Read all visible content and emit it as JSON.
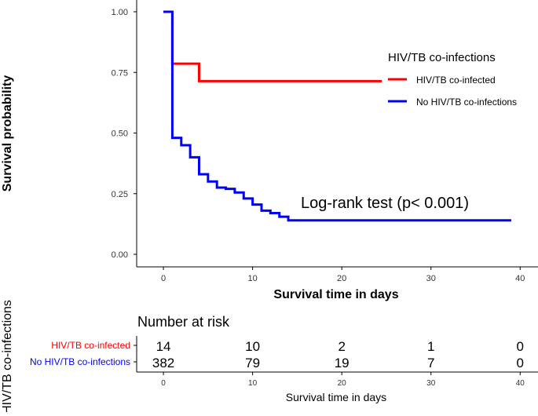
{
  "chart_data": {
    "type": "line",
    "subtype": "kaplan-meier",
    "ylabel": "Survival probability",
    "xlabel": "Survival time in days",
    "xlim": [
      -3,
      42
    ],
    "ylim": [
      0,
      1
    ],
    "x_ticks": [
      0,
      10,
      20,
      30,
      40
    ],
    "y_ticks": [
      0.0,
      0.25,
      0.5,
      0.75,
      1.0
    ],
    "y_tick_labels": [
      "0.00",
      "0.25",
      "0.50",
      "0.75",
      "1.00"
    ],
    "legend": {
      "title": "HIV/TB co-infections",
      "position": "right"
    },
    "annotation": "Log-rank test (p< 0.001)",
    "series": [
      {
        "name": "HIV/TB co-infected",
        "color": "#ff0000",
        "x": [
          0,
          1,
          4,
          24.5
        ],
        "y": [
          1.0,
          0.786,
          0.714,
          0.714
        ]
      },
      {
        "name": "No HIV/TB co-infections",
        "color": "#0000ff",
        "x": [
          0,
          1,
          2,
          3,
          4,
          5,
          6,
          7,
          8,
          9,
          10,
          11,
          12,
          13,
          14,
          39
        ],
        "y": [
          1.0,
          0.48,
          0.45,
          0.4,
          0.33,
          0.3,
          0.275,
          0.27,
          0.255,
          0.23,
          0.205,
          0.18,
          0.17,
          0.155,
          0.14,
          0.14
        ]
      }
    ],
    "risk_table": {
      "title": "Number at risk",
      "ylabel": "HIV/TB co-infections",
      "xlabel": "Survival time in days",
      "times": [
        0,
        10,
        20,
        30,
        40
      ],
      "rows": [
        {
          "name": "HIV/TB co-infected",
          "color": "#ff0000",
          "counts": [
            "14",
            "10",
            "2",
            "1",
            "0"
          ]
        },
        {
          "name": "No HIV/TB co-infections",
          "color": "#0000ff",
          "counts": [
            "382",
            "79",
            "19",
            "7",
            "0"
          ]
        }
      ]
    }
  }
}
